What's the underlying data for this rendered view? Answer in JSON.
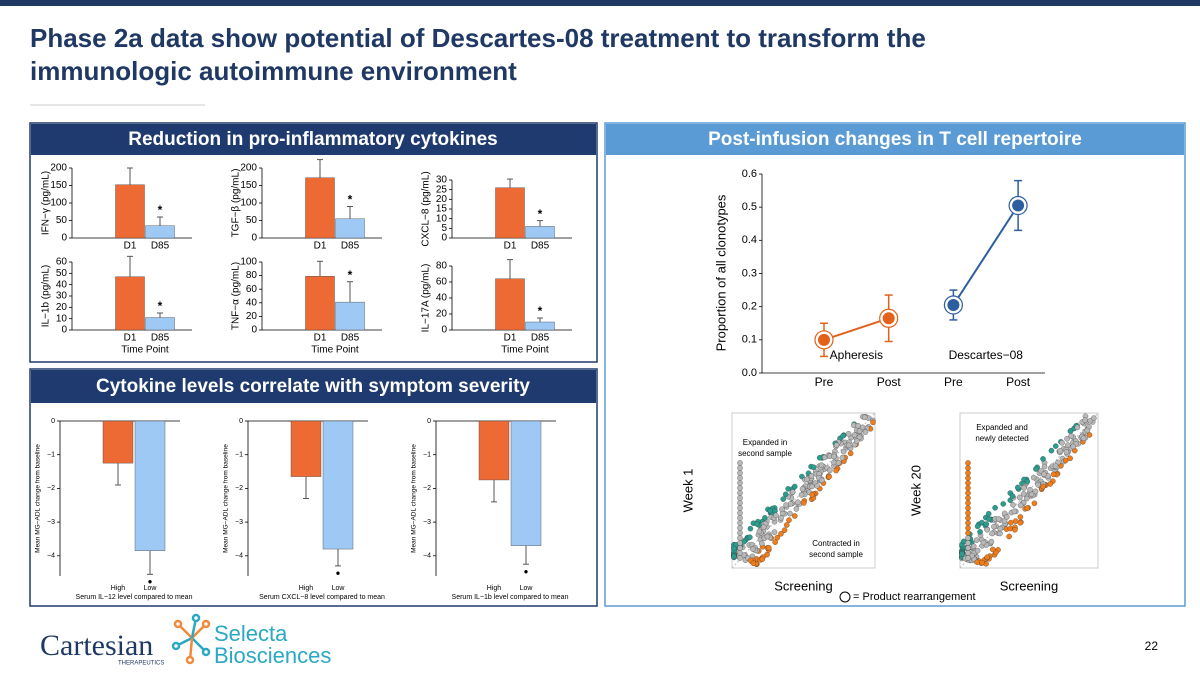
{
  "title": [
    "Phase 2a data show potential of Descartes-08 treatment to transform the",
    "immunologic autoimmune environment"
  ],
  "panels": {
    "cytokines": "Reduction in pro-inflammatory cytokines",
    "correlation": "Cytokine levels correlate with symptom severity",
    "repertoire": "Post-infusion changes in T cell repertoire"
  },
  "chart_data": [
    {
      "type": "bar",
      "ylabel": "IFN−γ (pg/mL)",
      "categories": [
        "D1",
        "D85"
      ],
      "values": [
        152,
        35
      ],
      "errors": [
        48,
        25
      ],
      "significance": [
        null,
        "*"
      ],
      "colors": [
        "#ed6a34",
        "#9ec9f5"
      ],
      "ylim": [
        0,
        200
      ],
      "yticks": [
        0,
        50,
        100,
        150,
        200
      ]
    },
    {
      "type": "bar",
      "ylabel": "TGF−β (pg/mL)",
      "categories": [
        "D1",
        "D85"
      ],
      "values": [
        172,
        55
      ],
      "errors": [
        52,
        35
      ],
      "significance": [
        null,
        "*"
      ],
      "colors": [
        "#ed6a34",
        "#9ec9f5"
      ],
      "ylim": [
        0,
        200
      ],
      "yticks": [
        0,
        50,
        100,
        150,
        200
      ]
    },
    {
      "type": "bar",
      "ylabel": "CXCL−8 (pg/mL)",
      "categories": [
        "D1",
        "D85"
      ],
      "values": [
        26,
        6
      ],
      "errors": [
        4.5,
        3
      ],
      "significance": [
        null,
        "*"
      ],
      "colors": [
        "#ed6a34",
        "#9ec9f5"
      ],
      "ylim": [
        0,
        30
      ],
      "yticks": [
        0,
        5,
        10,
        15,
        20,
        25,
        30
      ]
    },
    {
      "type": "bar",
      "ylabel": "IL−1b (pg/mL)",
      "xlabel": "Time Point",
      "categories": [
        "D1",
        "D85"
      ],
      "values": [
        47,
        11
      ],
      "errors": [
        18,
        4
      ],
      "significance": [
        null,
        "*"
      ],
      "colors": [
        "#ed6a34",
        "#9ec9f5"
      ],
      "ylim": [
        0,
        60
      ],
      "yticks": [
        0,
        10,
        20,
        30,
        40,
        50,
        60
      ]
    },
    {
      "type": "bar",
      "ylabel": "TNF−α (pg/mL)",
      "xlabel": "Time Point",
      "categories": [
        "D1",
        "D85"
      ],
      "values": [
        79,
        41
      ],
      "errors": [
        22,
        30
      ],
      "significance": [
        null,
        "*"
      ],
      "colors": [
        "#ed6a34",
        "#9ec9f5"
      ],
      "ylim": [
        0,
        100
      ],
      "yticks": [
        0,
        20,
        40,
        60,
        80,
        100
      ]
    },
    {
      "type": "bar",
      "ylabel": "IL−17A (pg/mL)",
      "xlabel": "Time Point",
      "categories": [
        "D1",
        "D85"
      ],
      "values": [
        64,
        10
      ],
      "errors": [
        24,
        5
      ],
      "significance": [
        null,
        "*"
      ],
      "colors": [
        "#ed6a34",
        "#9ec9f5"
      ],
      "ylim": [
        0,
        80
      ],
      "yticks": [
        0,
        20,
        40,
        60,
        80
      ]
    },
    {
      "type": "line",
      "ylabel": "Proportion of all clonotypes",
      "categories": [
        "Pre",
        "Post",
        "Pre",
        "Post"
      ],
      "series": [
        {
          "name": "Apheresis",
          "color": "#e2621b",
          "values": [
            0.1,
            0.165,
            null,
            null
          ],
          "errors": [
            0.05,
            0.07,
            null,
            null
          ]
        },
        {
          "name": "Descartes−08",
          "color": "#2d5f9e",
          "values": [
            null,
            null,
            0.205,
            0.505
          ],
          "errors": [
            null,
            null,
            0.045,
            0.075
          ]
        }
      ],
      "ylim": [
        0,
        0.6
      ],
      "yticks": [
        {
          "value": 0,
          "label": "0.0"
        },
        0.1,
        0.2,
        0.3,
        0.4,
        0.5,
        0.6
      ]
    },
    {
      "type": "bar",
      "ylabel": "Mean MG−ADL change from baseline",
      "xlabel": "Serum IL−12 level compared to mean",
      "categories": [
        "High",
        "Low"
      ],
      "values": [
        -1.25,
        -3.85
      ],
      "errors": [
        0.65,
        0.7
      ],
      "significance": [
        null,
        "•"
      ],
      "colors": [
        "#ed6a34",
        "#9ec9f5"
      ],
      "ylim": [
        -4.6,
        0
      ],
      "yticks": [
        0,
        {
          "value": -1,
          "label": "−1"
        },
        {
          "value": -2,
          "label": "−2"
        },
        {
          "value": -3,
          "label": "−3"
        },
        {
          "value": -4,
          "label": "−4"
        }
      ]
    },
    {
      "type": "bar",
      "ylabel": "Mean MG−ADL change from baseline",
      "xlabel": "Serum CXCL−8 level compared to mean",
      "categories": [
        "High",
        "Low"
      ],
      "values": [
        -1.65,
        -3.8
      ],
      "errors": [
        0.65,
        0.5
      ],
      "significance": [
        null,
        "•"
      ],
      "colors": [
        "#ed6a34",
        "#9ec9f5"
      ],
      "ylim": [
        -4.6,
        0
      ],
      "yticks": [
        0,
        {
          "value": -1,
          "label": "−1"
        },
        {
          "value": -2,
          "label": "−2"
        },
        {
          "value": -3,
          "label": "−3"
        },
        {
          "value": -4,
          "label": "−4"
        }
      ]
    },
    {
      "type": "bar",
      "ylabel": "Mean MG−ADL change from baseline",
      "xlabel": "Serum IL−1b level compared to mean",
      "categories": [
        "High",
        "Low"
      ],
      "values": [
        -1.75,
        -3.7
      ],
      "errors": [
        0.65,
        0.55
      ],
      "significance": [
        null,
        "•"
      ],
      "colors": [
        "#ed6a34",
        "#9ec9f5"
      ],
      "ylim": [
        -4.6,
        0
      ],
      "yticks": [
        0,
        {
          "value": -1,
          "label": "−1"
        },
        {
          "value": -2,
          "label": "−2"
        },
        {
          "value": -3,
          "label": "−3"
        },
        {
          "value": -4,
          "label": "−4"
        }
      ]
    }
  ],
  "clonotype_plots": {
    "week1": {
      "ylabel": "Week 1",
      "xlabel": "Screening",
      "expanded": [
        "Expanded in",
        "second sample"
      ],
      "contracted": [
        "Contracted in",
        "second sample"
      ]
    },
    "week20": {
      "ylabel": "Week 20",
      "xlabel": "Screening",
      "expanded": [
        "Expanded and",
        "newly detected"
      ]
    },
    "legend": "= Product rearrangement"
  },
  "logos": {
    "cartesian": "Cartesian",
    "therapeutics": "THERAPEUTICS",
    "selecta": "Selecta",
    "biosciences": "Biosciences"
  },
  "page_number": "22"
}
